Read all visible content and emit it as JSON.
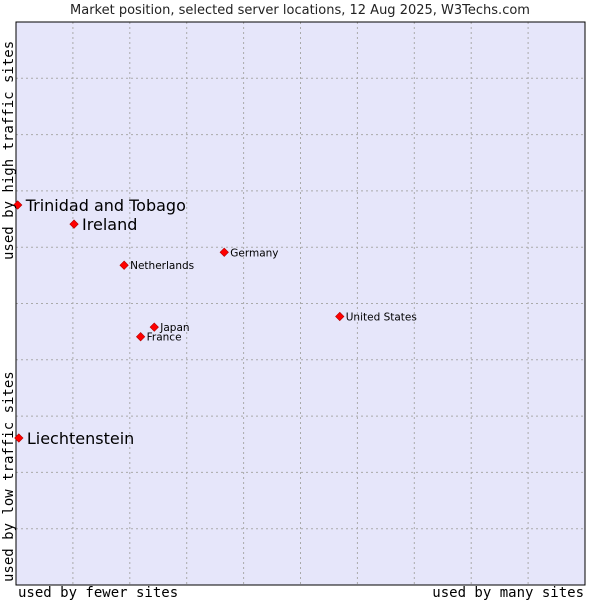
{
  "chart_data": {
    "type": "scatter",
    "title": "Market position, selected server locations, 12 Aug 2025, W3Techs.com",
    "xlabel_left": "used by fewer sites",
    "xlabel_right": "used by many sites",
    "ylabel_bottom": "used by low traffic sites",
    "ylabel_top": "used by high traffic sites",
    "xlim": [
      0,
      100
    ],
    "ylim": [
      0,
      100
    ],
    "grid": true,
    "series": [
      {
        "name": "Server locations",
        "points": [
          {
            "label": "Trinidad and Tobago",
            "x": 0.3,
            "y": 67.5,
            "emphasis": true
          },
          {
            "label": "Ireland",
            "x": 10.2,
            "y": 64.1,
            "emphasis": true
          },
          {
            "label": "Netherlands",
            "x": 19.0,
            "y": 56.8,
            "emphasis": false
          },
          {
            "label": "Germany",
            "x": 36.6,
            "y": 59.1,
            "emphasis": false
          },
          {
            "label": "United States",
            "x": 56.9,
            "y": 47.7,
            "emphasis": false
          },
          {
            "label": "Japan",
            "x": 24.3,
            "y": 45.8,
            "emphasis": false
          },
          {
            "label": "France",
            "x": 21.9,
            "y": 44.1,
            "emphasis": false
          },
          {
            "label": "Liechtenstein",
            "x": 0.5,
            "y": 26.1,
            "emphasis": true
          }
        ]
      }
    ],
    "colors": {
      "plot_background": "#e6e6fa",
      "grid": "#aaaaaa",
      "frame": "#000000",
      "point": "#ff0000"
    }
  }
}
